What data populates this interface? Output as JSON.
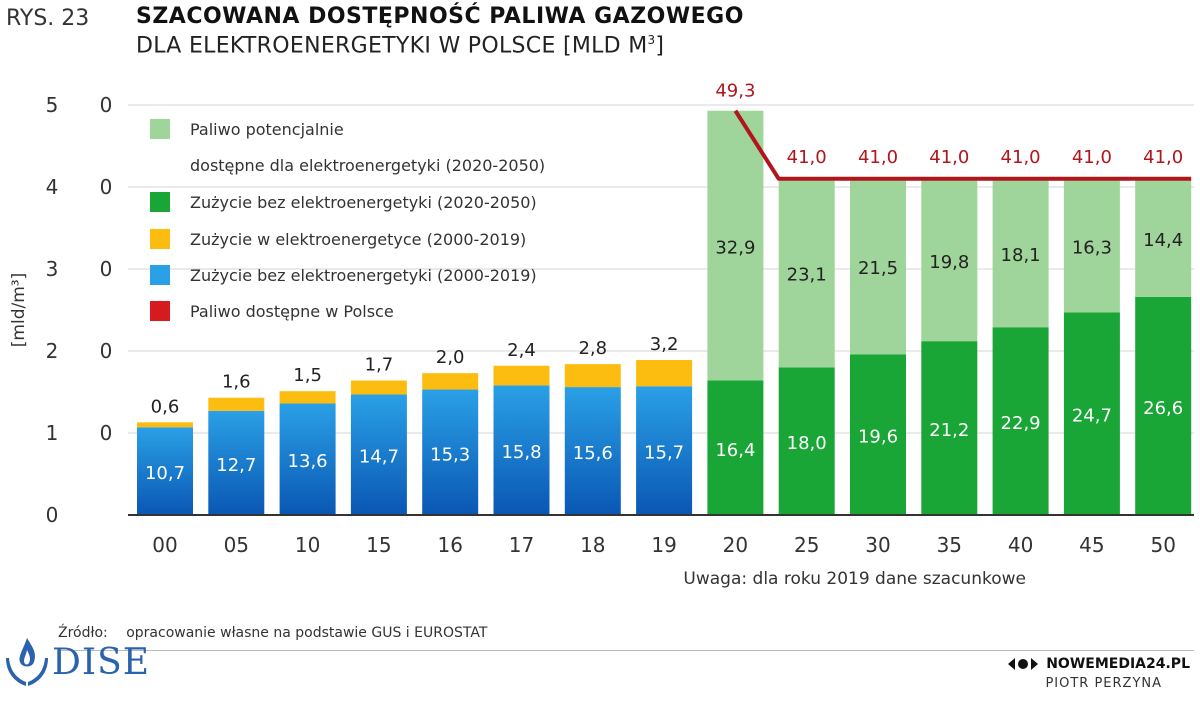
{
  "figure_label": "RYS. 23",
  "title": "SZACOWANA DOSTĘPNOŚĆ PALIWA GAZOWEGO",
  "subtitle": "DLA ELEKTROENERGETYKI W POLSCE [MLD M",
  "subtitle_sup": "3",
  "subtitle_end": "]",
  "source_label": "Źródło:",
  "source_text": "opracowanie własne na podstawie GUS i EUROSTAT",
  "logo_text": "DISE",
  "brand": "NOWEMEDIA24.PL",
  "author": "PIOTR PERZYNA",
  "colors": {
    "blue_top": "#2aa0e6",
    "blue_bottom": "#0a57b3",
    "yellow": "#fdbd10",
    "green": "#1aa537",
    "light_green": "#9fd49a",
    "red": "#b0161b",
    "legend_red": "#d71920"
  },
  "chart_data": {
    "type": "bar",
    "stacked": true,
    "categories": [
      "00",
      "05",
      "10",
      "15",
      "16",
      "17",
      "18",
      "19",
      "20",
      "25",
      "30",
      "35",
      "40",
      "45",
      "50"
    ],
    "ylabel": "[mld/m³]",
    "y_tick_labels": [
      "0",
      "1 0",
      "2 0",
      "3 0",
      "4 0",
      "5 0"
    ],
    "ylim": [
      0,
      50
    ],
    "note": "Uwaga: dla roku 2019 dane szacunkowe",
    "legend": [
      {
        "label": "Paliwo potencjalnie",
        "label2": "dostępne dla elektroenergetyki (2020-2050)",
        "color": "#9fd49a"
      },
      {
        "label": "Zużycie bez elektroenergetyki (2020-2050)",
        "color": "#1aa537"
      },
      {
        "label": "Zużycie w elektroenergetyce (2000-2019)",
        "color": "#fdbd10"
      },
      {
        "label": "Zużycie bez elektroenergetyki (2000-2019)",
        "color": "#2aa0e6"
      },
      {
        "label": "Paliwo dostępne w Polsce",
        "color": "#d71920"
      }
    ],
    "series": [
      {
        "key": "blue",
        "values": [
          10.7,
          12.7,
          13.6,
          14.7,
          15.3,
          15.8,
          15.6,
          15.7,
          null,
          null,
          null,
          null,
          null,
          null,
          null
        ]
      },
      {
        "key": "yellow",
        "values": [
          0.6,
          1.6,
          1.5,
          1.7,
          2.0,
          2.4,
          2.8,
          3.2,
          null,
          null,
          null,
          null,
          null,
          null,
          null
        ]
      },
      {
        "key": "green",
        "values": [
          null,
          null,
          null,
          null,
          null,
          null,
          null,
          null,
          16.4,
          18.0,
          19.6,
          21.2,
          22.9,
          24.7,
          26.6
        ]
      },
      {
        "key": "light_green",
        "values": [
          null,
          null,
          null,
          null,
          null,
          null,
          null,
          null,
          32.9,
          23.1,
          21.5,
          19.8,
          18.1,
          16.3,
          14.4
        ]
      }
    ],
    "blue_labels": [
      "10,7",
      "12,7",
      "13,6",
      "14,7",
      "15,3",
      "15,8",
      "15,6",
      "15,7"
    ],
    "yellow_labels": [
      "0,6",
      "1,6",
      "1,5",
      "1,7",
      "2,0",
      "2,4",
      "2,8",
      "3,2"
    ],
    "green_labels": [
      "16,4",
      "18,0",
      "19,6",
      "21,2",
      "22,9",
      "24,7",
      "26,6"
    ],
    "light_green_labels": [
      "32,9",
      "23,1",
      "21,5",
      "19,8",
      "18,1",
      "16,3",
      "14,4"
    ],
    "available_line": {
      "values": [
        49.3,
        41.0,
        41.0,
        41.0,
        41.0,
        41.0,
        41.0
      ],
      "labels": [
        "49,3",
        "41,0",
        "41,0",
        "41,0",
        "41,0",
        "41,0",
        "41,0"
      ]
    }
  }
}
